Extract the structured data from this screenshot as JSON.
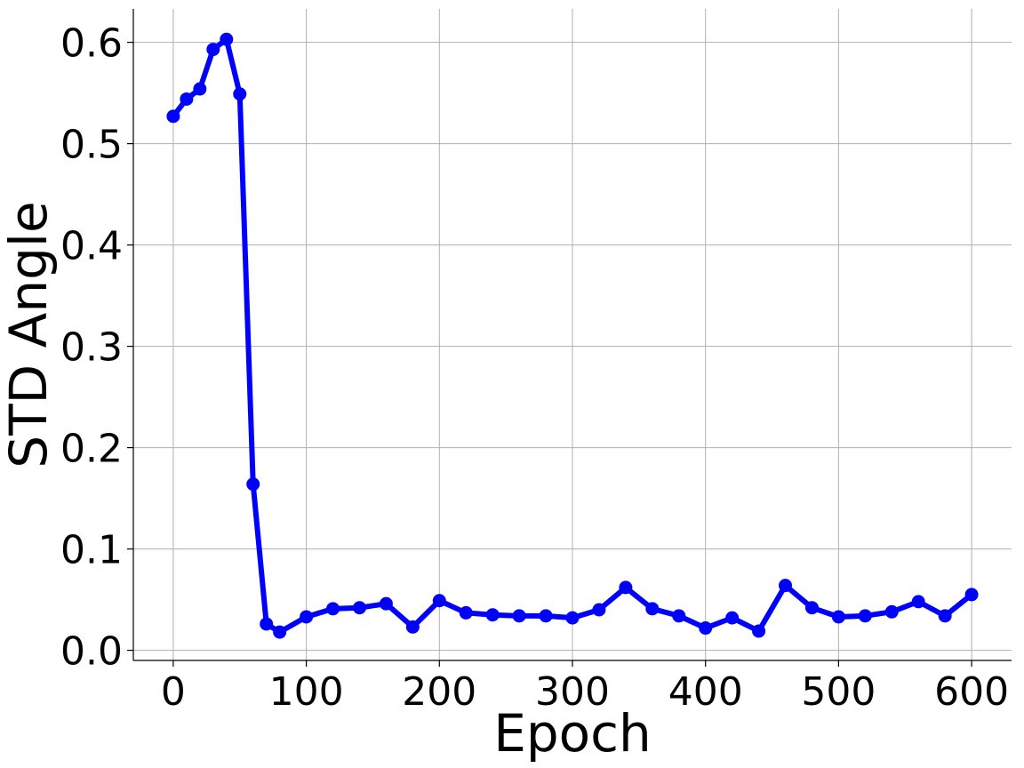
{
  "chart_data": {
    "type": "line",
    "xlabel": "Epoch",
    "ylabel": "STD Angle",
    "xlim": [
      -30,
      630
    ],
    "ylim": [
      -0.01,
      0.633
    ],
    "xticks": [
      0,
      100,
      200,
      300,
      400,
      500,
      600
    ],
    "xtick_labels": [
      "0",
      "100",
      "200",
      "300",
      "400",
      "500",
      "600"
    ],
    "yticks": [
      0.0,
      0.1,
      0.2,
      0.3,
      0.4,
      0.5,
      0.6
    ],
    "ytick_labels": [
      "0.0",
      "0.1",
      "0.2",
      "0.3",
      "0.4",
      "0.5",
      "0.6"
    ],
    "grid": true,
    "color": "#0000ff",
    "series": [
      {
        "x": [
          0,
          10,
          20,
          30,
          40,
          50,
          60,
          70,
          80,
          100,
          120,
          140,
          160,
          180,
          200,
          220,
          240,
          260,
          280,
          300,
          320,
          340,
          360,
          380,
          400,
          420,
          440,
          460,
          480,
          500,
          520,
          540,
          560,
          580,
          600
        ],
        "y": [
          0.527,
          0.544,
          0.554,
          0.593,
          0.603,
          0.549,
          0.164,
          0.026,
          0.018,
          0.033,
          0.041,
          0.042,
          0.046,
          0.023,
          0.049,
          0.037,
          0.035,
          0.034,
          0.034,
          0.032,
          0.04,
          0.062,
          0.041,
          0.034,
          0.022,
          0.032,
          0.019,
          0.064,
          0.042,
          0.033,
          0.034,
          0.038,
          0.048,
          0.034,
          0.055
        ]
      }
    ]
  }
}
